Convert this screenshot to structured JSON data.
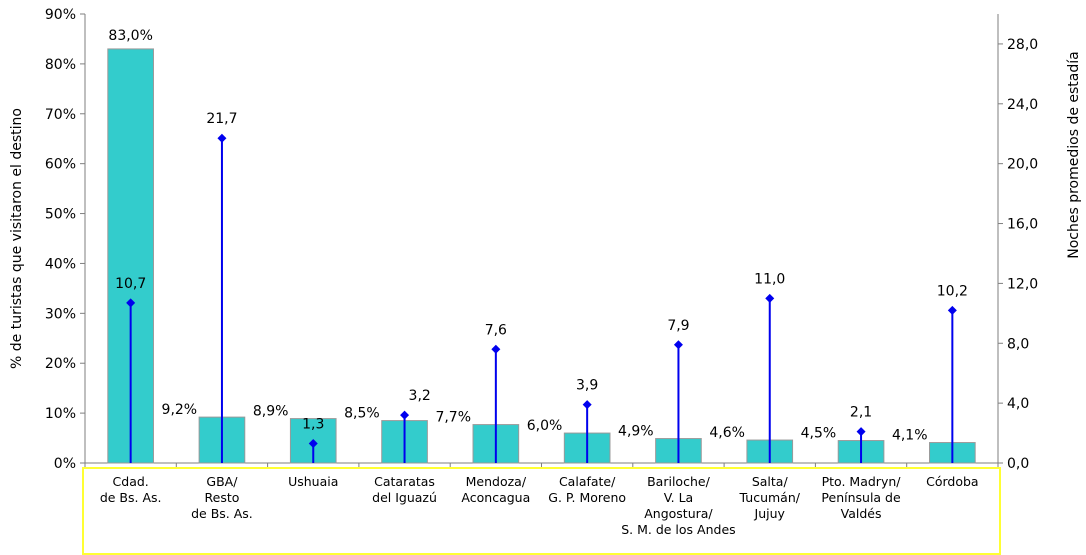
{
  "chart_data": {
    "type": "bar",
    "categories": [
      [
        "Cdad.",
        "de Bs. As."
      ],
      [
        "GBA/",
        "Resto",
        "de Bs. As."
      ],
      [
        "Ushuaia"
      ],
      [
        "Cataratas",
        "del Iguazú"
      ],
      [
        "Mendoza/",
        "Aconcagua"
      ],
      [
        "Calafate/",
        "G. P. Moreno"
      ],
      [
        "Bariloche/",
        "V. La",
        "Angostura/",
        "S. M. de los Andes"
      ],
      [
        "Salta/",
        "Tucumán/",
        "Jujuy"
      ],
      [
        "Pto. Madryn/",
        "Península de",
        "Valdés"
      ],
      [
        "Córdoba"
      ]
    ],
    "series": [
      {
        "type": "bar",
        "axis": "left",
        "values": [
          83.0,
          9.2,
          8.9,
          8.5,
          7.7,
          6.0,
          4.9,
          4.6,
          4.5,
          4.1
        ],
        "labels": [
          "83,0%",
          "9,2%",
          "8,9%",
          "8,5%",
          "7,7%",
          "6,0%",
          "4,9%",
          "4,6%",
          "4,5%",
          "4,1%"
        ],
        "color": "#33cccc"
      },
      {
        "type": "lollipop",
        "axis": "right",
        "values": [
          10.7,
          21.7,
          1.3,
          3.2,
          7.6,
          3.9,
          7.9,
          11.0,
          2.1,
          10.2
        ],
        "labels": [
          "10,7",
          "21,7",
          "1,3",
          "3,2",
          "7,6",
          "3,9",
          "7,9",
          "11,0",
          "2,1",
          "10,2"
        ],
        "color": "#0000ee"
      }
    ],
    "ylabel": "% de turistas que visitaron el destino",
    "y2label": "Noches promedios de estadía",
    "ylim": [
      0,
      90
    ],
    "y2lim": [
      0,
      30
    ],
    "yticks": [
      "0%",
      "10%",
      "20%",
      "30%",
      "40%",
      "50%",
      "60%",
      "70%",
      "80%",
      "90%"
    ],
    "y2ticks": [
      "0,0",
      "4,0",
      "8,0",
      "12,0",
      "16,0",
      "20,0",
      "24,0",
      "28,0"
    ],
    "y2tick_values": [
      0,
      4,
      8,
      12,
      16,
      20,
      24,
      28
    ],
    "grid": false,
    "category_box_color": "#ffff33"
  }
}
